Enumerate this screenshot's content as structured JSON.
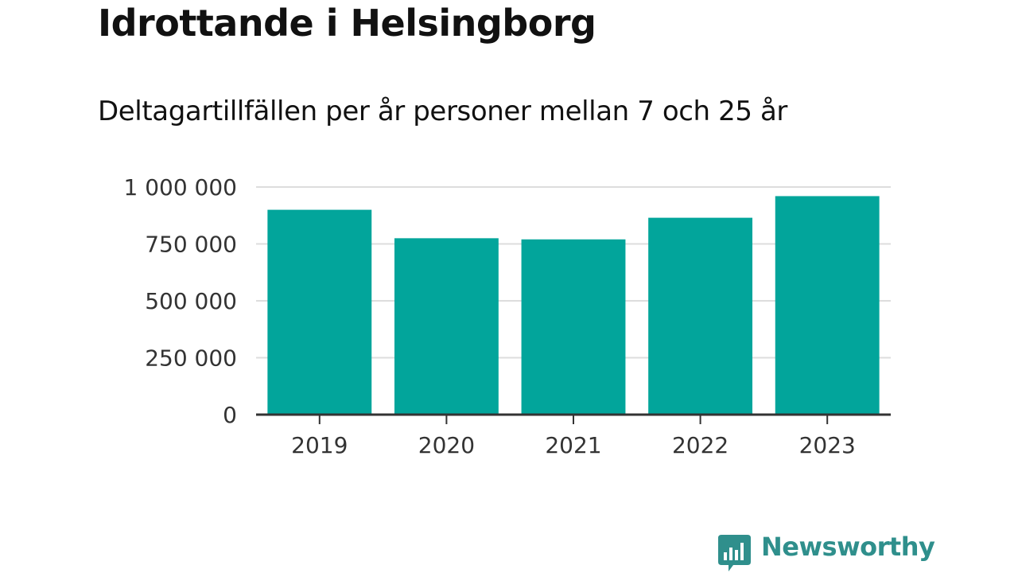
{
  "colors": {
    "bar": "#02A59B",
    "grid": "#DDDDDD",
    "axis": "#333333",
    "text": "#111111",
    "brand": "#2F8F8C"
  },
  "brand": {
    "name": "Newsworthy",
    "icon": "bar-chart-speech-bubble-icon"
  },
  "chart_data": {
    "type": "bar",
    "title": "Idrottande i Helsingborg",
    "subtitle": "Deltagartillfällen per år personer mellan 7 och 25 år",
    "xlabel": "",
    "ylabel": "",
    "categories": [
      "2019",
      "2020",
      "2021",
      "2022",
      "2023"
    ],
    "values": [
      900000,
      775000,
      770000,
      865000,
      960000
    ],
    "ylim": [
      0,
      1000000
    ],
    "yticks": [
      0,
      250000,
      500000,
      750000,
      1000000
    ],
    "ytick_labels": [
      "0",
      "250 000",
      "500 000",
      "750 000",
      "1 000 000"
    ],
    "grid": true,
    "legend": "none"
  }
}
